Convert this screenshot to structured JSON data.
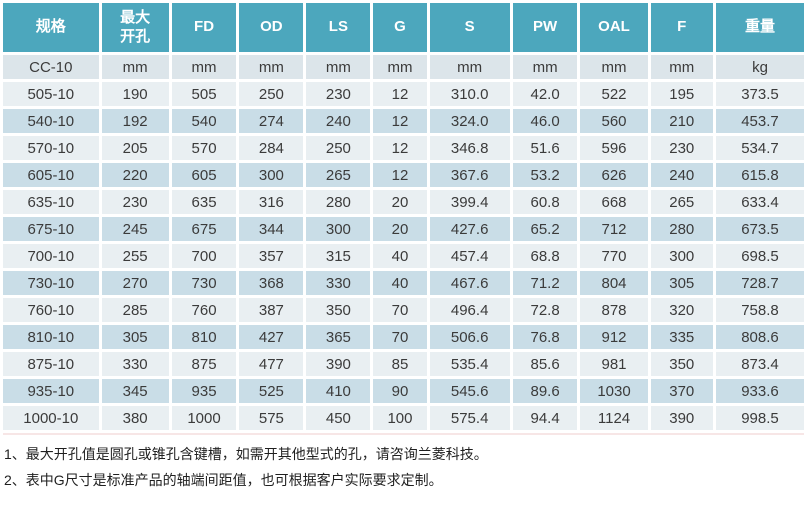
{
  "table": {
    "columns": [
      "规格",
      "最大\n开孔",
      "FD",
      "OD",
      "LS",
      "G",
      "S",
      "PW",
      "OAL",
      "F",
      "重量"
    ],
    "units_row": [
      "CC-10",
      "mm",
      "mm",
      "mm",
      "mm",
      "mm",
      "mm",
      "mm",
      "mm",
      "mm",
      "kg"
    ],
    "rows": [
      [
        "505-10",
        "190",
        "505",
        "250",
        "230",
        "12",
        "310.0",
        "42.0",
        "522",
        "195",
        "373.5"
      ],
      [
        "540-10",
        "192",
        "540",
        "274",
        "240",
        "12",
        "324.0",
        "46.0",
        "560",
        "210",
        "453.7"
      ],
      [
        "570-10",
        "205",
        "570",
        "284",
        "250",
        "12",
        "346.8",
        "51.6",
        "596",
        "230",
        "534.7"
      ],
      [
        "605-10",
        "220",
        "605",
        "300",
        "265",
        "12",
        "367.6",
        "53.2",
        "626",
        "240",
        "615.8"
      ],
      [
        "635-10",
        "230",
        "635",
        "316",
        "280",
        "20",
        "399.4",
        "60.8",
        "668",
        "265",
        "633.4"
      ],
      [
        "675-10",
        "245",
        "675",
        "344",
        "300",
        "20",
        "427.6",
        "65.2",
        "712",
        "280",
        "673.5"
      ],
      [
        "700-10",
        "255",
        "700",
        "357",
        "315",
        "40",
        "457.4",
        "68.8",
        "770",
        "300",
        "698.5"
      ],
      [
        "730-10",
        "270",
        "730",
        "368",
        "330",
        "40",
        "467.6",
        "71.2",
        "804",
        "305",
        "728.7"
      ],
      [
        "760-10",
        "285",
        "760",
        "387",
        "350",
        "70",
        "496.4",
        "72.8",
        "878",
        "320",
        "758.8"
      ],
      [
        "810-10",
        "305",
        "810",
        "427",
        "365",
        "70",
        "506.6",
        "76.8",
        "912",
        "335",
        "808.6"
      ],
      [
        "875-10",
        "330",
        "875",
        "477",
        "390",
        "85",
        "535.4",
        "85.6",
        "981",
        "350",
        "873.4"
      ],
      [
        "935-10",
        "345",
        "935",
        "525",
        "410",
        "90",
        "545.6",
        "89.6",
        "1030",
        "370",
        "933.6"
      ],
      [
        "1000-10",
        "380",
        "1000",
        "575",
        "450",
        "100",
        "575.4",
        "94.4",
        "1124",
        "390",
        "998.5"
      ]
    ]
  },
  "notes": [
    "1、最大开孔值是圆孔或锥孔含键槽，如需开其他型式的孔，请咨询兰菱科技。",
    "2、表中G尺寸是标准产品的轴端间距值，也可根据客户实际要求定制。"
  ],
  "colors": {
    "header_bg": "#4CA7BD",
    "header_text": "#FFFFFF",
    "unit_row_bg": "#DCE5EA",
    "row_light_bg": "#E9EFF2",
    "row_dark_bg": "#C9DDE7",
    "cell_text": "#3B3B3B"
  }
}
